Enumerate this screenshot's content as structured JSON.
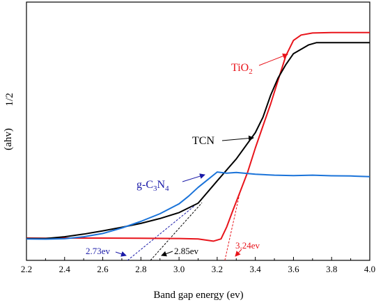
{
  "chart_data": {
    "type": "line",
    "xlabel": "Band gap energy (ev)",
    "ylabel": "(ahv)",
    "ylabel_superscript": "1/2",
    "xlim": [
      2.2,
      4.0
    ],
    "ylim": [
      0,
      1.0
    ],
    "x_ticks": [
      "2.2",
      "2.4",
      "2.6",
      "2.8",
      "3.0",
      "3.2",
      "3.4",
      "3.6",
      "3.8",
      "4.0"
    ],
    "y_ticks_shown": false,
    "grid": false,
    "colors": {
      "tio2": "#e8141b",
      "tcn": "#000000",
      "gcn": "#1a73d9",
      "gcn_label": "#1a1aa8",
      "tcn_tangent": "#000080"
    },
    "series": [
      {
        "name": "TiO2",
        "label_main": "TiO",
        "label_sub": "2",
        "color": "#e8141b",
        "x": [
          2.2,
          2.3,
          2.4,
          2.6,
          2.8,
          3.0,
          3.1,
          3.18,
          3.22,
          3.25,
          3.28,
          3.32,
          3.36,
          3.4,
          3.44,
          3.48,
          3.52,
          3.56,
          3.6,
          3.64,
          3.7,
          3.8,
          3.9,
          4.0
        ],
        "y": [
          0.089,
          0.088,
          0.089,
          0.089,
          0.088,
          0.087,
          0.085,
          0.075,
          0.085,
          0.14,
          0.21,
          0.3,
          0.39,
          0.5,
          0.6,
          0.7,
          0.81,
          0.92,
          0.99,
          1.015,
          1.024,
          1.026,
          1.026,
          1.026
        ]
      },
      {
        "name": "TCN",
        "label_main": "TCN",
        "color": "#000000",
        "x": [
          2.2,
          2.3,
          2.4,
          2.5,
          2.6,
          2.7,
          2.8,
          2.9,
          3.0,
          3.1,
          3.2,
          3.3,
          3.4,
          3.44,
          3.48,
          3.52,
          3.56,
          3.6,
          3.64,
          3.68,
          3.72,
          3.8,
          3.9,
          4.0
        ],
        "y": [
          0.087,
          0.087,
          0.095,
          0.107,
          0.122,
          0.138,
          0.156,
          0.178,
          0.205,
          0.248,
          0.35,
          0.45,
          0.57,
          0.64,
          0.74,
          0.82,
          0.88,
          0.93,
          0.95,
          0.97,
          0.98,
          0.98,
          0.98,
          0.98
        ]
      },
      {
        "name": "g-C3N4",
        "label_main": "g-C",
        "label_sub1": "3",
        "label_mid": "N",
        "label_sub2": "4",
        "color": "#1a73d9",
        "x": [
          2.2,
          2.3,
          2.4,
          2.5,
          2.6,
          2.7,
          2.8,
          2.9,
          3.0,
          3.05,
          3.1,
          3.15,
          3.2,
          3.25,
          3.3,
          3.4,
          3.5,
          3.6,
          3.7,
          3.8,
          3.9,
          4.0
        ],
        "y": [
          0.085,
          0.084,
          0.086,
          0.095,
          0.11,
          0.135,
          0.165,
          0.2,
          0.245,
          0.28,
          0.32,
          0.355,
          0.39,
          0.385,
          0.388,
          0.38,
          0.376,
          0.374,
          0.376,
          0.373,
          0.372,
          0.369
        ]
      }
    ],
    "annotations": [
      {
        "text": "2.73ev",
        "color": "#1a1aa8",
        "tangent_from": [
          2.73,
          0.0
        ],
        "tangent_to": [
          3.08,
          0.235
        ]
      },
      {
        "text": "2.85ev",
        "color": "#000000",
        "tangent_from": [
          2.85,
          0.0
        ],
        "tangent_to": [
          3.12,
          0.25
        ]
      },
      {
        "text": "3.24ev",
        "color": "#e8141b",
        "tangent_from": [
          3.24,
          0.0
        ],
        "tangent_to": [
          3.32,
          0.3
        ]
      }
    ]
  }
}
